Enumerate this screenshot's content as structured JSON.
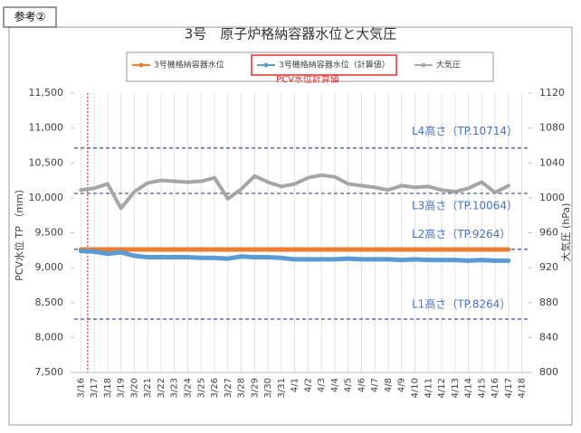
{
  "chart_data": {
    "type": "line",
    "badge": "参考②",
    "title": "3号　原子炉格納容器水位と大気圧",
    "legend_note": "PCV水位計算値",
    "ylabel": "PCV水位 TP （mm）",
    "y2label": "大気圧 (hPa)",
    "categories": [
      "3/16",
      "3/17",
      "3/18",
      "3/19",
      "3/20",
      "3/21",
      "3/22",
      "3/23",
      "3/24",
      "3/25",
      "3/26",
      "3/27",
      "3/28",
      "3/29",
      "3/30",
      "3/31",
      "4/1",
      "4/2",
      "4/3",
      "4/4",
      "4/5",
      "4/6",
      "4/7",
      "4/8",
      "4/9",
      "4/10",
      "4/11",
      "4/12",
      "4/13",
      "4/14",
      "4/15",
      "4/16",
      "4/17",
      "4/18"
    ],
    "series": [
      {
        "name": "3号機格納容器水位",
        "color": "#ed7d31",
        "values": [
          9260,
          9260,
          9260,
          9260,
          9260,
          9260,
          9260,
          9260,
          9260,
          9260,
          9260,
          9260,
          9260,
          9260,
          9260,
          9260,
          9260,
          9260,
          9260,
          9260,
          9260,
          9260,
          9260,
          9260,
          9260,
          9260,
          9260,
          9260,
          9260,
          9260,
          9260,
          9260,
          9260,
          null
        ]
      },
      {
        "name": "3号機格納容器水位（計算値）",
        "color": "#5b9bd5",
        "values": [
          9240,
          9230,
          9200,
          9220,
          9170,
          9150,
          9150,
          9150,
          9150,
          9140,
          9140,
          9130,
          9160,
          9150,
          9150,
          9140,
          9120,
          9120,
          9120,
          9120,
          9130,
          9120,
          9120,
          9120,
          9110,
          9120,
          9110,
          9110,
          9110,
          9100,
          9110,
          9100,
          9100,
          null
        ]
      },
      {
        "name": "大気圧",
        "color": "#a5a5a5",
        "axis": "y2",
        "values": [
          1009,
          1011,
          1016,
          988,
          1007,
          1017,
          1020,
          1019,
          1018,
          1019,
          1023,
          999,
          1010,
          1025,
          1018,
          1013,
          1016,
          1023,
          1026,
          1024,
          1016,
          1014,
          1012,
          1009,
          1014,
          1012,
          1013,
          1009,
          1007,
          1011,
          1018,
          1006,
          1014,
          null
        ]
      }
    ],
    "reference_lines": [
      {
        "label": "L4高さ（TP.10714）",
        "value": 10714
      },
      {
        "label": "L3高さ（TP.10064）",
        "value": 10064
      },
      {
        "label": "L2高さ（TP.9264）",
        "value": 9264
      },
      {
        "label": "L1高さ（TP.8264）",
        "value": 8264
      }
    ],
    "ylim": [
      7500,
      11500
    ],
    "yticks": [
      {
        "value": 7500,
        "label": "7,500"
      },
      {
        "value": 8000,
        "label": "8,000"
      },
      {
        "value": 8500,
        "label": "8,500"
      },
      {
        "value": 9000,
        "label": "9,000"
      },
      {
        "value": 9500,
        "label": "9,500"
      },
      {
        "value": 10000,
        "label": "10,000"
      },
      {
        "value": 10500,
        "label": "10,500"
      },
      {
        "value": 11000,
        "label": "11,000"
      },
      {
        "value": 11500,
        "label": "11,500"
      }
    ],
    "y2lim": [
      800,
      1120
    ],
    "y2ticks": [
      800,
      840,
      880,
      920,
      960,
      1000,
      1040,
      1080,
      1120
    ],
    "grid": true
  }
}
